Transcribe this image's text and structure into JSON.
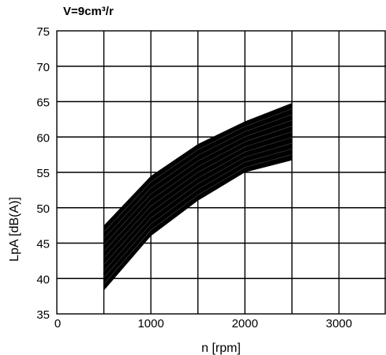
{
  "chart_data": {
    "type": "area",
    "title": "V=9cm³/r",
    "xlabel": "n [rpm]",
    "ylabel": "LpA [dB(A)]",
    "xlim": [
      0,
      3500
    ],
    "ylim": [
      35,
      75
    ],
    "x_ticks": [
      0,
      1000,
      2000,
      3000
    ],
    "x_tick_labels": [
      "0",
      "1000",
      "2000",
      "3000"
    ],
    "y_ticks": [
      35,
      40,
      45,
      50,
      55,
      60,
      65,
      70,
      75
    ],
    "y_tick_labels": [
      "35",
      "40",
      "45",
      "50",
      "55",
      "60",
      "65",
      "70",
      "75"
    ],
    "grid": true,
    "band_color": "#000000",
    "series": [
      {
        "x": [
          500,
          1000,
          1500,
          2000,
          2500
        ],
        "upper": [
          47.5,
          54.5,
          59.0,
          62.2,
          64.8
        ],
        "lower": [
          38.3,
          46.0,
          51.0,
          55.0,
          56.7
        ]
      }
    ]
  }
}
